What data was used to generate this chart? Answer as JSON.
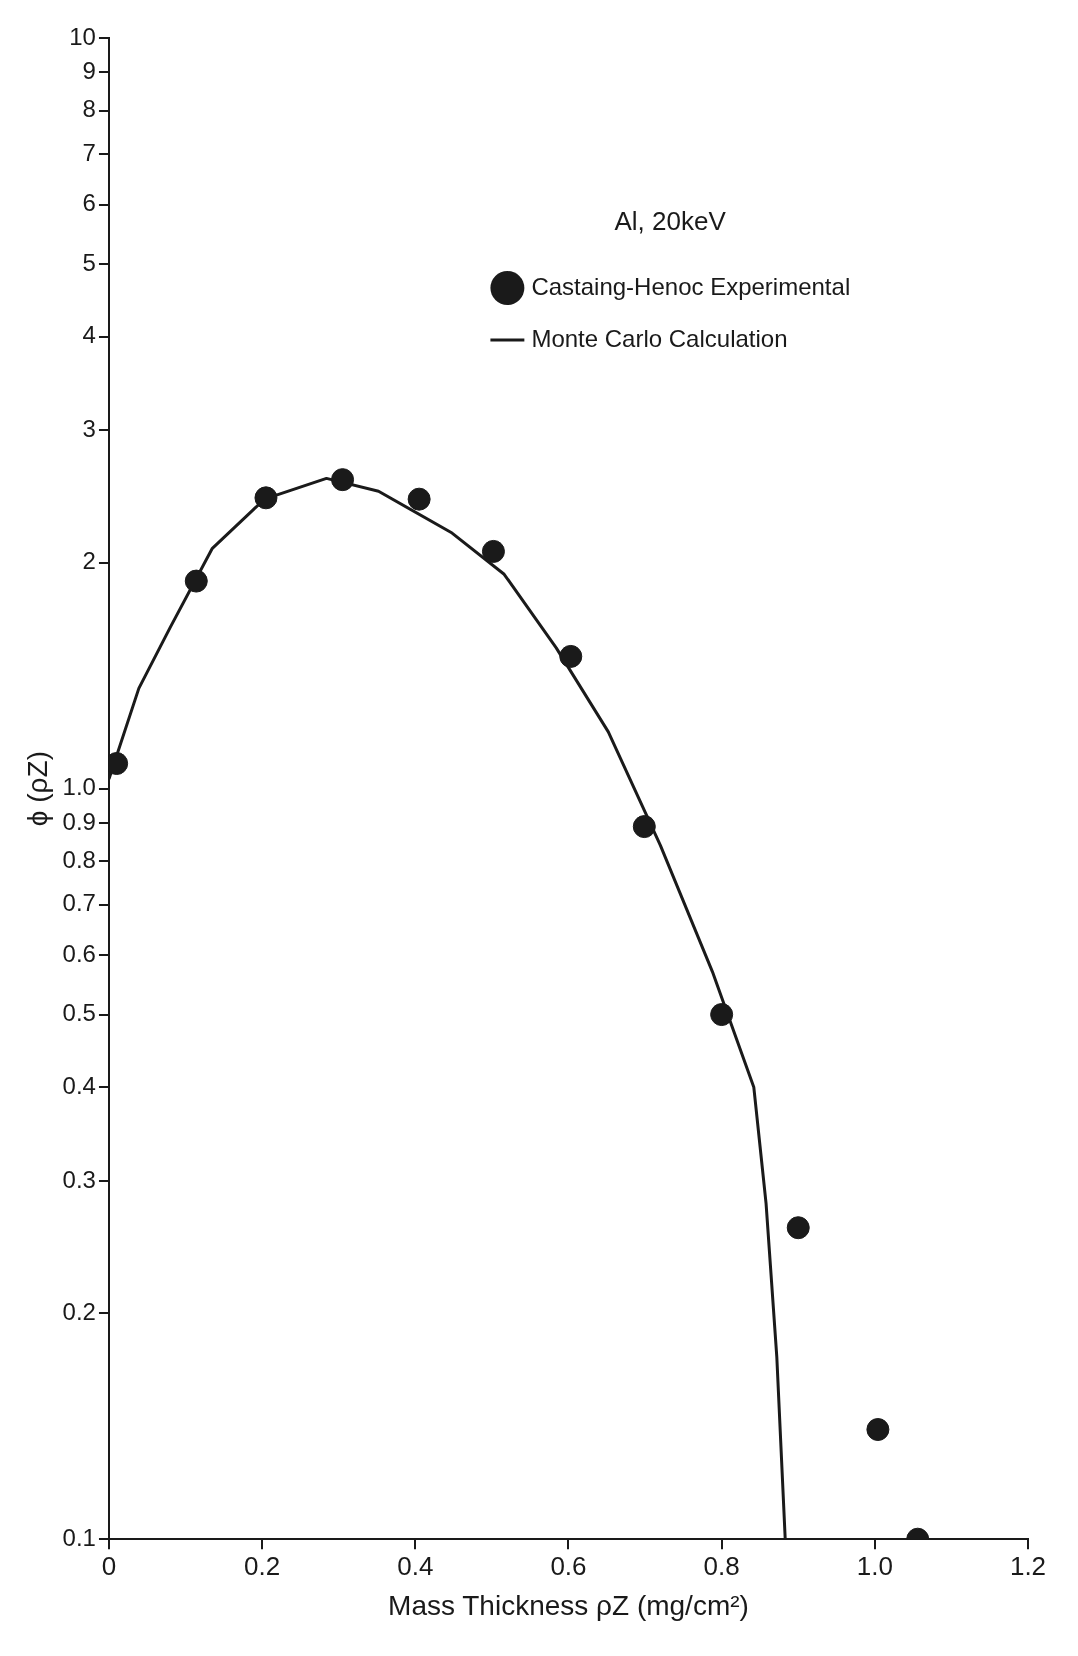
{
  "chart_data": {
    "type": "scatter",
    "xlabel": "Mass Thickness ρZ (mg/cm²)",
    "ylabel": "ϕ (ρZ)",
    "annotations": [
      "Al, 20keV"
    ],
    "xlim": [
      0,
      1.2
    ],
    "xticks": [
      0,
      0.2,
      0.4,
      0.6,
      0.8,
      {
        "value": 1,
        "label": "1.0"
      },
      1.2
    ],
    "ylim": [
      0.1,
      10
    ],
    "yticks": [
      0.1,
      0.2,
      0.3,
      0.4,
      0.5,
      0.6,
      0.7,
      0.8,
      0.9,
      {
        "value": 1,
        "label": "1.0"
      },
      2,
      3,
      4,
      5,
      6,
      7,
      8,
      9,
      10
    ],
    "log": "y",
    "grid": false,
    "legend": "top right",
    "series": [
      {
        "name": "Castaing-Henoc Experimental",
        "color": "#1a1a1a",
        "marker": "circle",
        "x": [
          0.01,
          0.114,
          0.205,
          0.305,
          0.405,
          0.502,
          0.603,
          0.699,
          0.8,
          0.9,
          1.004,
          1.056
        ],
        "values": [
          1.08,
          1.89,
          2.44,
          2.58,
          2.43,
          2.07,
          1.5,
          0.89,
          0.5,
          0.26,
          0.14,
          0.1
        ]
      },
      {
        "name": "Monte Carlo Calculation",
        "type": "line",
        "color": "#1a1a1a",
        "marker": "none",
        "line_style": "solid",
        "x": [
          0,
          0.039,
          0.08,
          0.135,
          0.203,
          0.284,
          0.352,
          0.448,
          0.516,
          0.584,
          0.652,
          0.72,
          0.788,
          0.842,
          0.858,
          0.872,
          0.883
        ],
        "values": [
          1.03,
          1.36,
          1.64,
          2.09,
          2.43,
          2.59,
          2.49,
          2.19,
          1.93,
          1.54,
          1.19,
          0.84,
          0.57,
          0.4,
          0.28,
          0.175,
          0.1
        ]
      }
    ]
  }
}
